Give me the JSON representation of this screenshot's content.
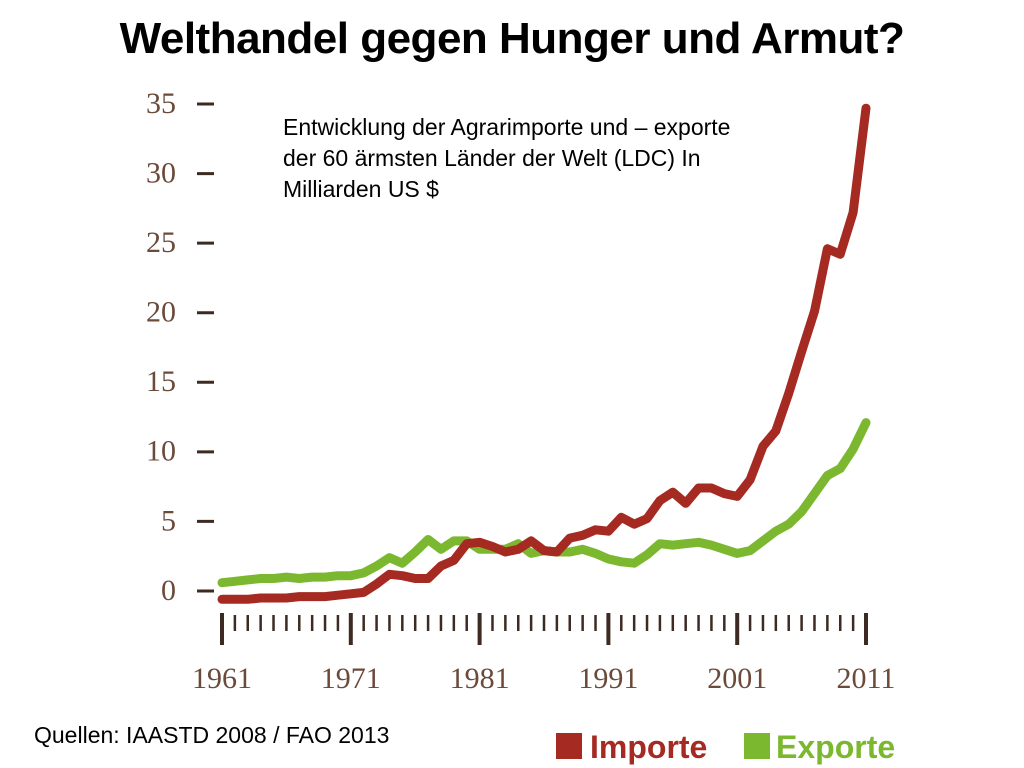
{
  "page": {
    "title": "Welthandel gegen Hunger und Armut?",
    "source": "Quellen: IAASTD 2008 / FAO 2013"
  },
  "chart_data": {
    "type": "line",
    "title": "",
    "annotation": "Entwicklung der Agrarimporte und – exporte der 60 ärmsten Länder der Welt (LDC) In Milliarden US $",
    "xlabel": "",
    "ylabel": "",
    "xlim": [
      1961,
      2011
    ],
    "ylim": [
      0,
      35
    ],
    "y_ticks": [
      0,
      5,
      10,
      15,
      20,
      25,
      30,
      35
    ],
    "x_ticks": [
      1961,
      1971,
      1981,
      1991,
      2001,
      2011
    ],
    "x_tick_labels": [
      "1961",
      "1971",
      "1981",
      "1991",
      "2001",
      "2011"
    ],
    "grid": false,
    "legend_position": "bottom-right",
    "series": [
      {
        "name": "Importe",
        "color": "#a52a22",
        "x": [
          1961,
          1962,
          1963,
          1964,
          1965,
          1966,
          1967,
          1968,
          1969,
          1970,
          1971,
          1972,
          1973,
          1974,
          1975,
          1976,
          1977,
          1978,
          1979,
          1980,
          1981,
          1982,
          1983,
          1984,
          1985,
          1986,
          1987,
          1988,
          1989,
          1990,
          1991,
          1992,
          1993,
          1994,
          1995,
          1996,
          1997,
          1998,
          1999,
          2000,
          2001,
          2002,
          2003,
          2004,
          2005,
          2006,
          2007,
          2008,
          2009,
          2010,
          2011
        ],
        "values": [
          -0.6,
          -0.6,
          -0.6,
          -0.5,
          -0.5,
          -0.5,
          -0.4,
          -0.4,
          -0.4,
          -0.3,
          -0.2,
          -0.1,
          0.5,
          1.2,
          1.1,
          0.9,
          0.9,
          1.8,
          2.2,
          3.4,
          3.5,
          3.2,
          2.8,
          3.0,
          3.6,
          2.9,
          2.8,
          3.8,
          4.0,
          4.4,
          4.3,
          5.3,
          4.8,
          5.2,
          6.5,
          7.1,
          6.3,
          7.4,
          7.4,
          7.0,
          6.8,
          8.0,
          10.4,
          11.5,
          14.2,
          17.2,
          20.1,
          24.6,
          24.2,
          27.2,
          34.7
        ]
      },
      {
        "name": "Exporte",
        "color": "#7cb82f",
        "x": [
          1961,
          1962,
          1963,
          1964,
          1965,
          1966,
          1967,
          1968,
          1969,
          1970,
          1971,
          1972,
          1973,
          1974,
          1975,
          1976,
          1977,
          1978,
          1979,
          1980,
          1981,
          1982,
          1983,
          1984,
          1985,
          1986,
          1987,
          1988,
          1989,
          1990,
          1991,
          1992,
          1993,
          1994,
          1995,
          1996,
          1997,
          1998,
          1999,
          2000,
          2001,
          2002,
          2003,
          2004,
          2005,
          2006,
          2007,
          2008,
          2009,
          2010,
          2011
        ],
        "values": [
          0.6,
          0.7,
          0.8,
          0.9,
          0.9,
          1.0,
          0.9,
          1.0,
          1.0,
          1.1,
          1.1,
          1.3,
          1.8,
          2.4,
          2.0,
          2.8,
          3.7,
          3.0,
          3.6,
          3.6,
          3.0,
          3.0,
          3.0,
          3.4,
          2.7,
          2.9,
          2.8,
          2.8,
          3.0,
          2.7,
          2.3,
          2.1,
          2.0,
          2.6,
          3.4,
          3.3,
          3.4,
          3.5,
          3.3,
          3.0,
          2.7,
          2.9,
          3.6,
          4.3,
          4.8,
          5.7,
          7.0,
          8.3,
          8.8,
          10.2,
          12.1
        ]
      }
    ]
  },
  "colors": {
    "axis": "#3d2a22",
    "tick_label": "#6b4a3a",
    "importe": "#a52a22",
    "exporte": "#7cb82f"
  }
}
